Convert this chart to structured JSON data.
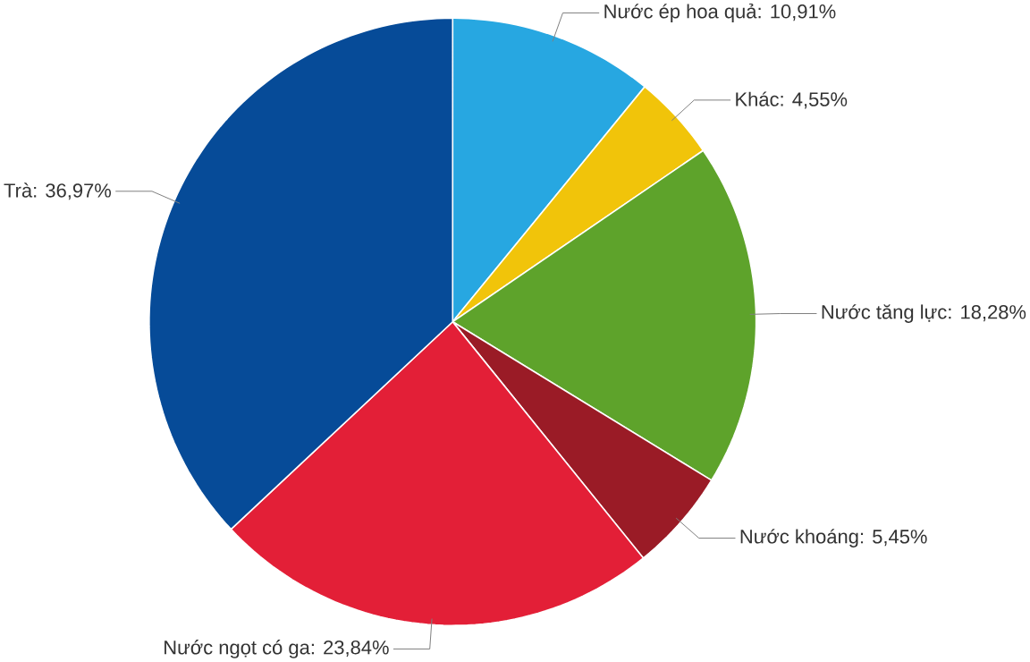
{
  "chart_data": {
    "type": "pie",
    "categories": [
      "Nước ép hoa quả",
      "Khác",
      "Nước tăng lực",
      "Nước khoáng",
      "Nước ngọt có ga",
      "Trà"
    ],
    "values": [
      10.91,
      4.55,
      18.28,
      5.45,
      23.84,
      36.97
    ],
    "value_labels": [
      ": 10,91%",
      ": 4,55%",
      ": 18,28%",
      ": 5,45%",
      ": 23,84%",
      ": 36,97%"
    ],
    "colors": [
      "#27a7e1",
      "#f1c40a",
      "#5ea32b",
      "#9a1b26",
      "#e31f37",
      "#064b98"
    ]
  }
}
